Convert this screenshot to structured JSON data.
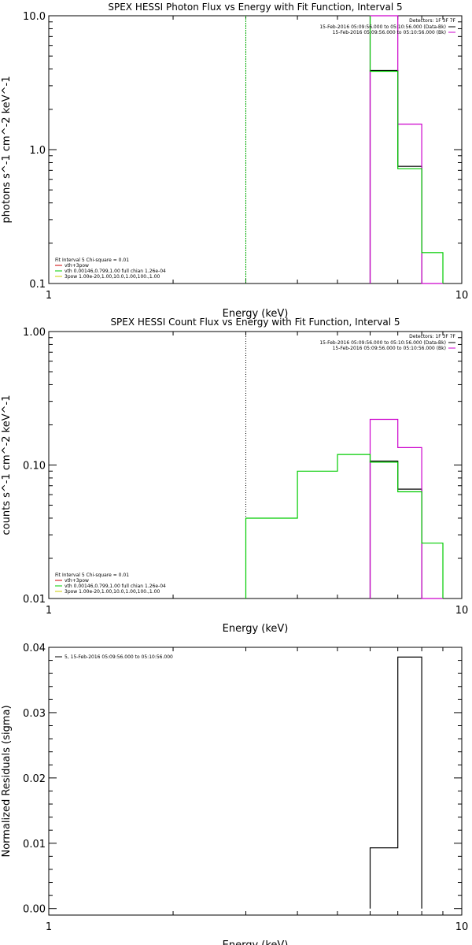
{
  "chart_data": [
    {
      "type": "step",
      "title": "SPEX HESSI Photon Flux vs Energy with Fit Function, Interval 5",
      "xlabel": "Energy (keV)",
      "ylabel": "photons s^-1 cm^-2 keV^-1",
      "xscale": "log",
      "yscale": "log",
      "xlim": [
        1,
        10
      ],
      "ylim": [
        0.1,
        10
      ],
      "xticks": [
        {
          "v": 1,
          "label": "1"
        },
        {
          "v": 10,
          "label": "10"
        }
      ],
      "yticks": [
        {
          "v": 0.1,
          "label": "0.1"
        },
        {
          "v": 1,
          "label": "1.0"
        },
        {
          "v": 10,
          "label": "10.0"
        }
      ],
      "detector_label": "Detectors: 1F 3F 7F",
      "legend_right": [
        {
          "text": "15-Feb-2016 05:09:56.000 to 05:10:56.000 (Data-Bk)",
          "color": "#000000"
        },
        {
          "text": "15-Feb-2016 05:09:56.000 to 05:10:56.000 (Bk)",
          "color": "#cc00cc"
        }
      ],
      "legend_left_header": "Fit Interval 5   Chi-square = 0.01",
      "legend_left": [
        {
          "text": "vth+3pow",
          "color": "#cc0000"
        },
        {
          "text": "vth 0.00146,0.799,1.00  full chian 1.26e-04",
          "color": "#00cc00"
        },
        {
          "text": "3pow 1.00e-20,1.00,10.0,1.00,100.,1.00",
          "color": "#cccc00"
        }
      ],
      "vline": {
        "x": 3.0,
        "color": "#00aa00",
        "style": "dashed"
      },
      "series": [
        {
          "name": "Data-Bk",
          "color": "#000000",
          "edges": [
            6.0,
            7.0,
            8.0
          ],
          "values": [
            3.9,
            0.75
          ]
        },
        {
          "name": "Bk",
          "color": "#cc00cc",
          "edges": [
            6.0,
            7.0,
            8.0,
            9.0
          ],
          "values": [
            11.0,
            1.55,
            0.09
          ]
        },
        {
          "name": "vth+3pow",
          "color": "#00cc00",
          "edges": [
            6.0,
            7.0,
            8.0,
            9.0
          ],
          "values": [
            3.85,
            0.72,
            0.17
          ],
          "left_rise_to": 11.0
        }
      ]
    },
    {
      "type": "step",
      "title": "SPEX HESSI Count Flux vs Energy with Fit Function, Interval 5",
      "xlabel": "Energy (keV)",
      "ylabel": "counts s^-1 cm^-2 keV^-1",
      "xscale": "log",
      "yscale": "log",
      "xlim": [
        1,
        10
      ],
      "ylim": [
        0.01,
        1
      ],
      "xticks": [
        {
          "v": 1,
          "label": "1"
        },
        {
          "v": 10,
          "label": "10"
        }
      ],
      "yticks": [
        {
          "v": 0.01,
          "label": "0.01"
        },
        {
          "v": 0.1,
          "label": "0.10"
        },
        {
          "v": 1,
          "label": "1.00"
        }
      ],
      "detector_label": "Detectors: 1F 3F 7F",
      "legend_right": [
        {
          "text": "15-Feb-2016 05:09:56.000 to 05:10:56.000 (Data-Bk)",
          "color": "#000000"
        },
        {
          "text": "15-Feb-2016 05:09:56.000 to 05:10:56.000 (Bk)",
          "color": "#cc00cc"
        }
      ],
      "legend_left_header": "Fit Interval 5   Chi-square = 0.01",
      "legend_left": [
        {
          "text": "vth+3pow",
          "color": "#cc0000"
        },
        {
          "text": "vth 0.00146,0.799,1.00  full chian 1.26e-04",
          "color": "#00cc00"
        },
        {
          "text": "3pow 1.00e-20,1.00,10.0,1.00,100.,1.00",
          "color": "#cccc00"
        }
      ],
      "vline": {
        "x": 3.0,
        "color": "#000000",
        "style": "dotted"
      },
      "series": [
        {
          "name": "Data-Bk",
          "color": "#000000",
          "edges": [
            6.0,
            7.0,
            8.0
          ],
          "values": [
            0.107,
            0.066
          ]
        },
        {
          "name": "Bk",
          "color": "#cc00cc",
          "edges": [
            6.0,
            7.0,
            8.0,
            9.0
          ],
          "values": [
            0.22,
            0.135,
            0.009
          ]
        },
        {
          "name": "vth+3pow",
          "color": "#00cc00",
          "edges": [
            3.0,
            4.0,
            5.0,
            6.0,
            7.0,
            8.0,
            9.0
          ],
          "values": [
            0.04,
            0.09,
            0.12,
            0.105,
            0.063,
            0.026
          ],
          "left_rise_from": 0.01
        }
      ]
    },
    {
      "type": "step",
      "title": "",
      "xlabel": "Energy (keV)",
      "ylabel": "Normalized Residuals (sigma)",
      "xscale": "log",
      "yscale": "linear",
      "xlim": [
        1,
        10
      ],
      "ylim": [
        -0.001,
        0.04
      ],
      "xticks": [
        {
          "v": 1,
          "label": "1"
        },
        {
          "v": 10,
          "label": "10"
        }
      ],
      "yticks": [
        {
          "v": 0.0,
          "label": "0.00"
        },
        {
          "v": 0.01,
          "label": "0.01"
        },
        {
          "v": 0.02,
          "label": "0.02"
        },
        {
          "v": 0.03,
          "label": "0.03"
        },
        {
          "v": 0.04,
          "label": "0.04"
        }
      ],
      "legend_left_top": [
        {
          "text": "5, 15-Feb-2016 05:09:56.000 to 05:10:56.000",
          "color": "#000000"
        }
      ],
      "series": [
        {
          "name": "5, 15-Feb-2016 05:09:56.000 to 05:10:56.000",
          "color": "#000000",
          "edges": [
            6.0,
            7.0,
            8.0
          ],
          "values": [
            0.0093,
            0.0385
          ],
          "base": 0
        }
      ]
    }
  ]
}
